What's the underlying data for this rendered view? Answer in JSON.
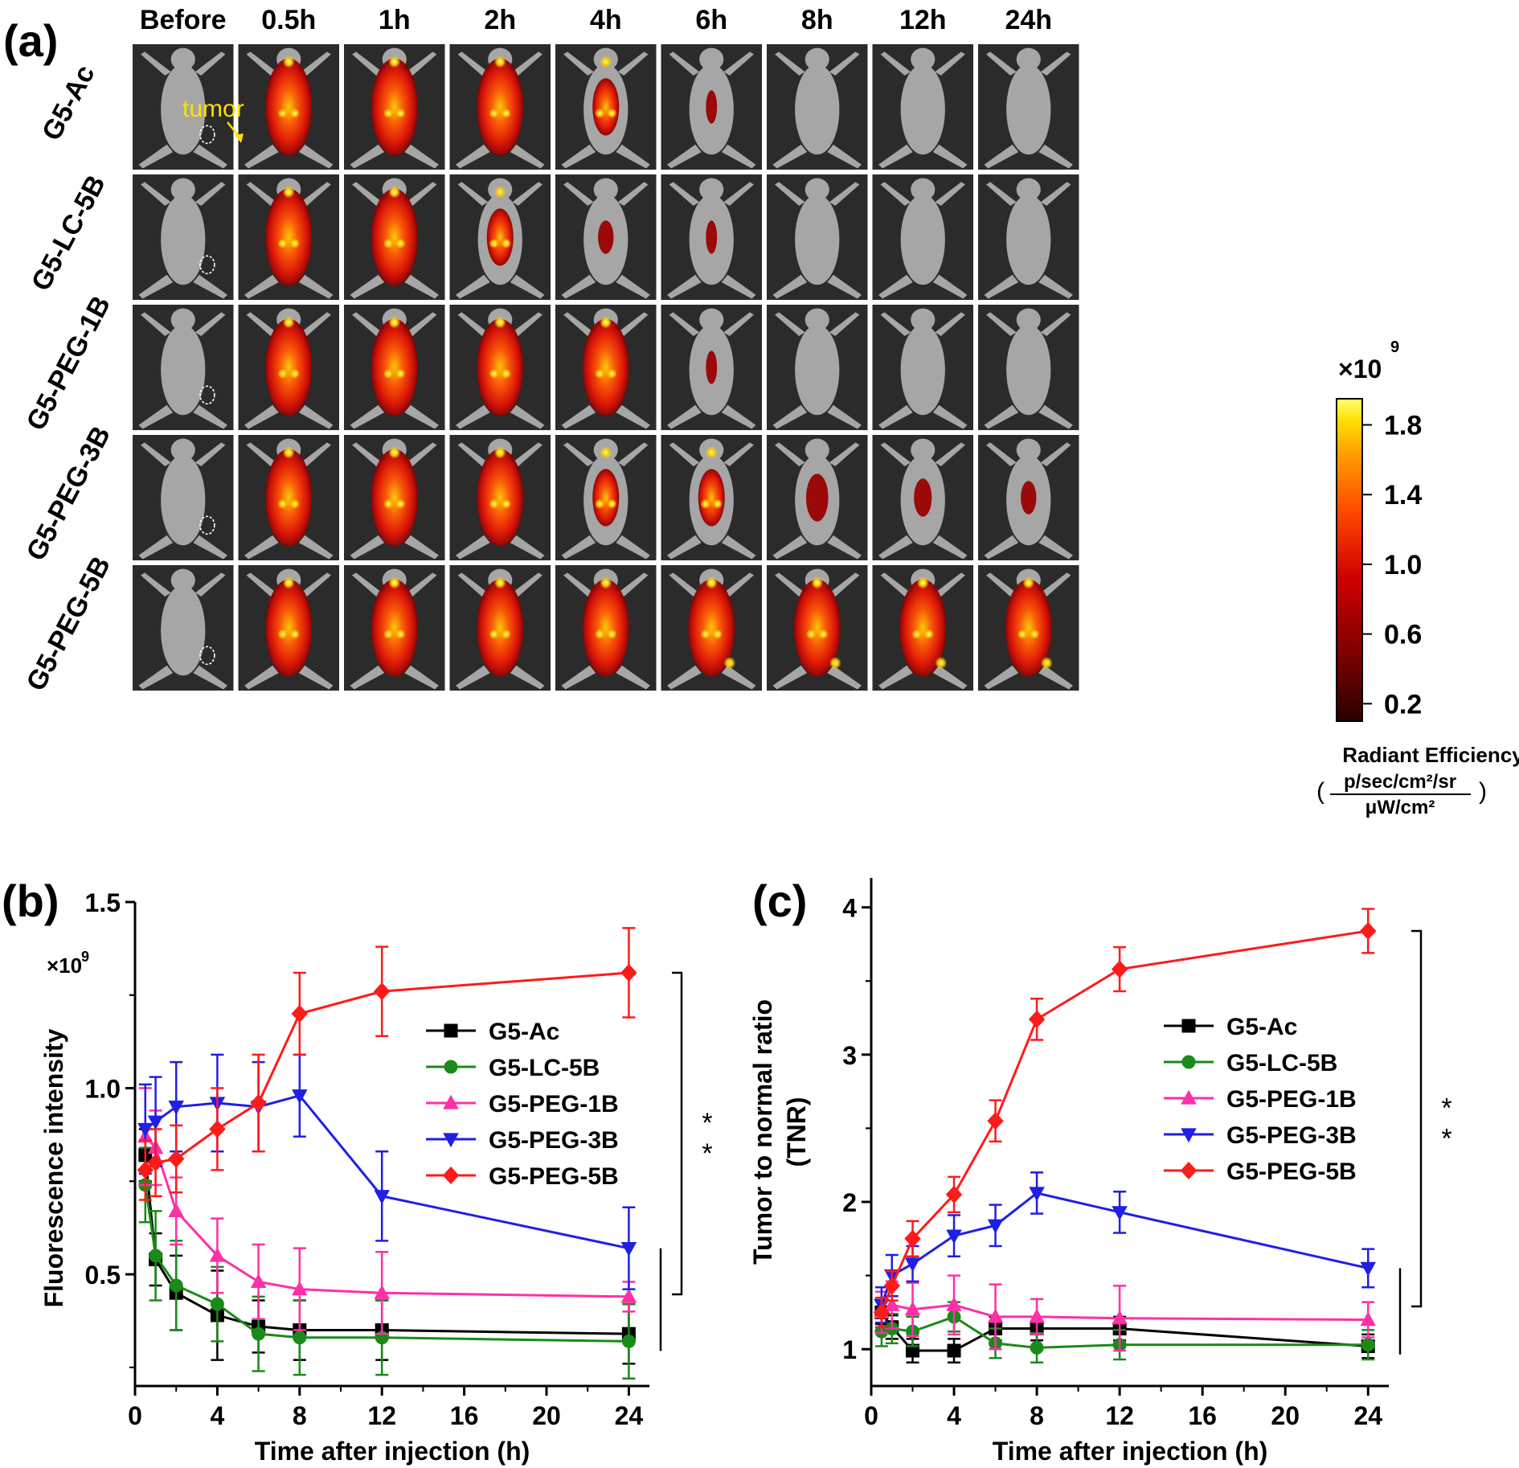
{
  "panel_a": {
    "label": "(a)",
    "time_points": [
      "Before",
      "0.5h",
      "1h",
      "2h",
      "4h",
      "6h",
      "8h",
      "12h",
      "24h"
    ],
    "groups": [
      "G5-Ac",
      "G5-LC-5B",
      "G5-PEG-1B",
      "G5-PEG-3B",
      "G5-PEG-5B"
    ],
    "tumor_label": "tumor",
    "signal_levels": [
      [
        0,
        1.0,
        0.8,
        0.8,
        0.6,
        0.1,
        0,
        0,
        0
      ],
      [
        0,
        1.0,
        0.9,
        0.6,
        0.35,
        0.1,
        0,
        0,
        0
      ],
      [
        0,
        1.0,
        0.95,
        0.85,
        0.75,
        0.25,
        0,
        0,
        0
      ],
      [
        0,
        1.0,
        1.0,
        1.0,
        0.6,
        0.6,
        0.5,
        0.4,
        0.35
      ],
      [
        0,
        1.0,
        1.0,
        0.85,
        0.8,
        0.85,
        0.95,
        0.95,
        0.95
      ]
    ],
    "colorbar": {
      "exponent_label": "×10",
      "exponent": "9",
      "ticks": [
        "1.8",
        "1.4",
        "1.0",
        "0.6",
        "0.2"
      ],
      "tick_values": [
        1.8,
        1.4,
        1.0,
        0.6,
        0.2
      ],
      "range": [
        0.1,
        1.95
      ],
      "title": "Radiant Efficiency",
      "unit_numerator": "p/sec/cm²/sr",
      "unit_denominator": "μW/cm²",
      "paren_open": "(",
      "paren_close": ")",
      "colors": [
        "#3a0000",
        "#8b0000",
        "#d40000",
        "#ff4a00",
        "#ff9b00",
        "#ffe000",
        "#ffff66"
      ]
    }
  },
  "chart_data": [
    {
      "panel_label": "(b)",
      "type": "line",
      "xlabel": "Time after injection (h)",
      "ylabel": "Fluorescence intensity",
      "y_multiplier_label": "×10",
      "y_multiplier_exponent": "9",
      "xlim": [
        0,
        25
      ],
      "ylim": [
        0.2,
        1.5
      ],
      "xticks": [
        0,
        4,
        8,
        12,
        16,
        20,
        24
      ],
      "yticks": [
        0.5,
        1.0,
        1.5
      ],
      "ytick_labels": [
        "0.5",
        "1.0",
        "1.5"
      ],
      "legend": "upper-middle",
      "significance": "* *",
      "x": [
        0.5,
        1,
        2,
        4,
        6,
        8,
        12,
        24
      ],
      "series": [
        {
          "name": "G5-Ac",
          "color": "#000000",
          "marker": "square",
          "values": [
            0.82,
            0.54,
            0.45,
            0.39,
            0.36,
            0.35,
            0.35,
            0.34
          ],
          "errors": [
            0.07,
            0.07,
            0.1,
            0.12,
            0.07,
            0.08,
            0.08,
            0.08
          ]
        },
        {
          "name": "G5-LC-5B",
          "color": "#1a8a1a",
          "marker": "circle",
          "values": [
            0.74,
            0.55,
            0.47,
            0.42,
            0.34,
            0.33,
            0.33,
            0.32
          ],
          "errors": [
            0.1,
            0.12,
            0.12,
            0.1,
            0.1,
            0.1,
            0.1,
            0.1
          ]
        },
        {
          "name": "G5-PEG-1B",
          "color": "#ff2fa8",
          "marker": "triangle-up",
          "values": [
            0.87,
            0.84,
            0.67,
            0.55,
            0.48,
            0.46,
            0.45,
            0.44
          ],
          "errors": [
            0.13,
            0.1,
            0.09,
            0.1,
            0.1,
            0.11,
            0.11,
            0.04
          ]
        },
        {
          "name": "G5-PEG-3B",
          "color": "#1f1fe6",
          "marker": "triangle-down",
          "values": [
            0.89,
            0.91,
            0.95,
            0.96,
            0.95,
            0.98,
            0.71,
            0.57
          ],
          "errors": [
            0.12,
            0.12,
            0.12,
            0.13,
            0.12,
            0.11,
            0.12,
            0.11
          ]
        },
        {
          "name": "G5-PEG-5B",
          "color": "#ff1a1a",
          "marker": "diamond",
          "values": [
            0.78,
            0.8,
            0.81,
            0.89,
            0.96,
            1.2,
            1.26,
            1.31
          ],
          "errors": [
            0.08,
            0.09,
            0.09,
            0.11,
            0.13,
            0.11,
            0.12,
            0.12
          ]
        }
      ]
    },
    {
      "panel_label": "(c)",
      "type": "line",
      "xlabel": "Time after injection (h)",
      "ylabel": "Tumor to normal ratio",
      "ylabel2": "(TNR)",
      "xlim": [
        0,
        25
      ],
      "ylim": [
        0.75,
        4.2
      ],
      "xticks": [
        0,
        4,
        8,
        12,
        16,
        20,
        24
      ],
      "yticks": [
        1,
        2,
        3,
        4
      ],
      "ytick_labels": [
        "1",
        "2",
        "3",
        "4"
      ],
      "legend": "middle-right",
      "significance": "* *",
      "x": [
        0.5,
        1,
        2,
        4,
        6,
        8,
        12,
        24
      ],
      "series": [
        {
          "name": "G5-Ac",
          "color": "#000000",
          "marker": "square",
          "values": [
            1.25,
            1.15,
            0.99,
            0.99,
            1.14,
            1.14,
            1.14,
            1.02
          ],
          "errors": [
            0.08,
            0.08,
            0.08,
            0.08,
            0.08,
            0.08,
            0.08,
            0.08
          ]
        },
        {
          "name": "G5-LC-5B",
          "color": "#1a8a1a",
          "marker": "circle",
          "values": [
            1.12,
            1.14,
            1.12,
            1.22,
            1.04,
            1.01,
            1.03,
            1.03
          ],
          "errors": [
            0.1,
            0.1,
            0.1,
            0.1,
            0.1,
            0.1,
            0.1,
            0.1
          ]
        },
        {
          "name": "G5-PEG-1B",
          "color": "#ff2fa8",
          "marker": "triangle-up",
          "values": [
            1.25,
            1.3,
            1.27,
            1.3,
            1.22,
            1.22,
            1.21,
            1.2
          ],
          "errors": [
            0.14,
            0.16,
            0.18,
            0.2,
            0.22,
            0.12,
            0.22,
            0.12
          ]
        },
        {
          "name": "G5-PEG-3B",
          "color": "#1f1fe6",
          "marker": "triangle-down",
          "values": [
            1.3,
            1.5,
            1.58,
            1.77,
            1.84,
            2.06,
            1.93,
            1.55
          ],
          "errors": [
            0.12,
            0.14,
            0.12,
            0.14,
            0.14,
            0.14,
            0.14,
            0.13
          ]
        },
        {
          "name": "G5-PEG-5B",
          "color": "#ff1a1a",
          "marker": "diamond",
          "values": [
            1.25,
            1.43,
            1.75,
            2.05,
            2.55,
            3.24,
            3.58,
            3.84
          ],
          "errors": [
            0.1,
            0.1,
            0.12,
            0.12,
            0.14,
            0.14,
            0.15,
            0.15
          ]
        }
      ]
    }
  ]
}
